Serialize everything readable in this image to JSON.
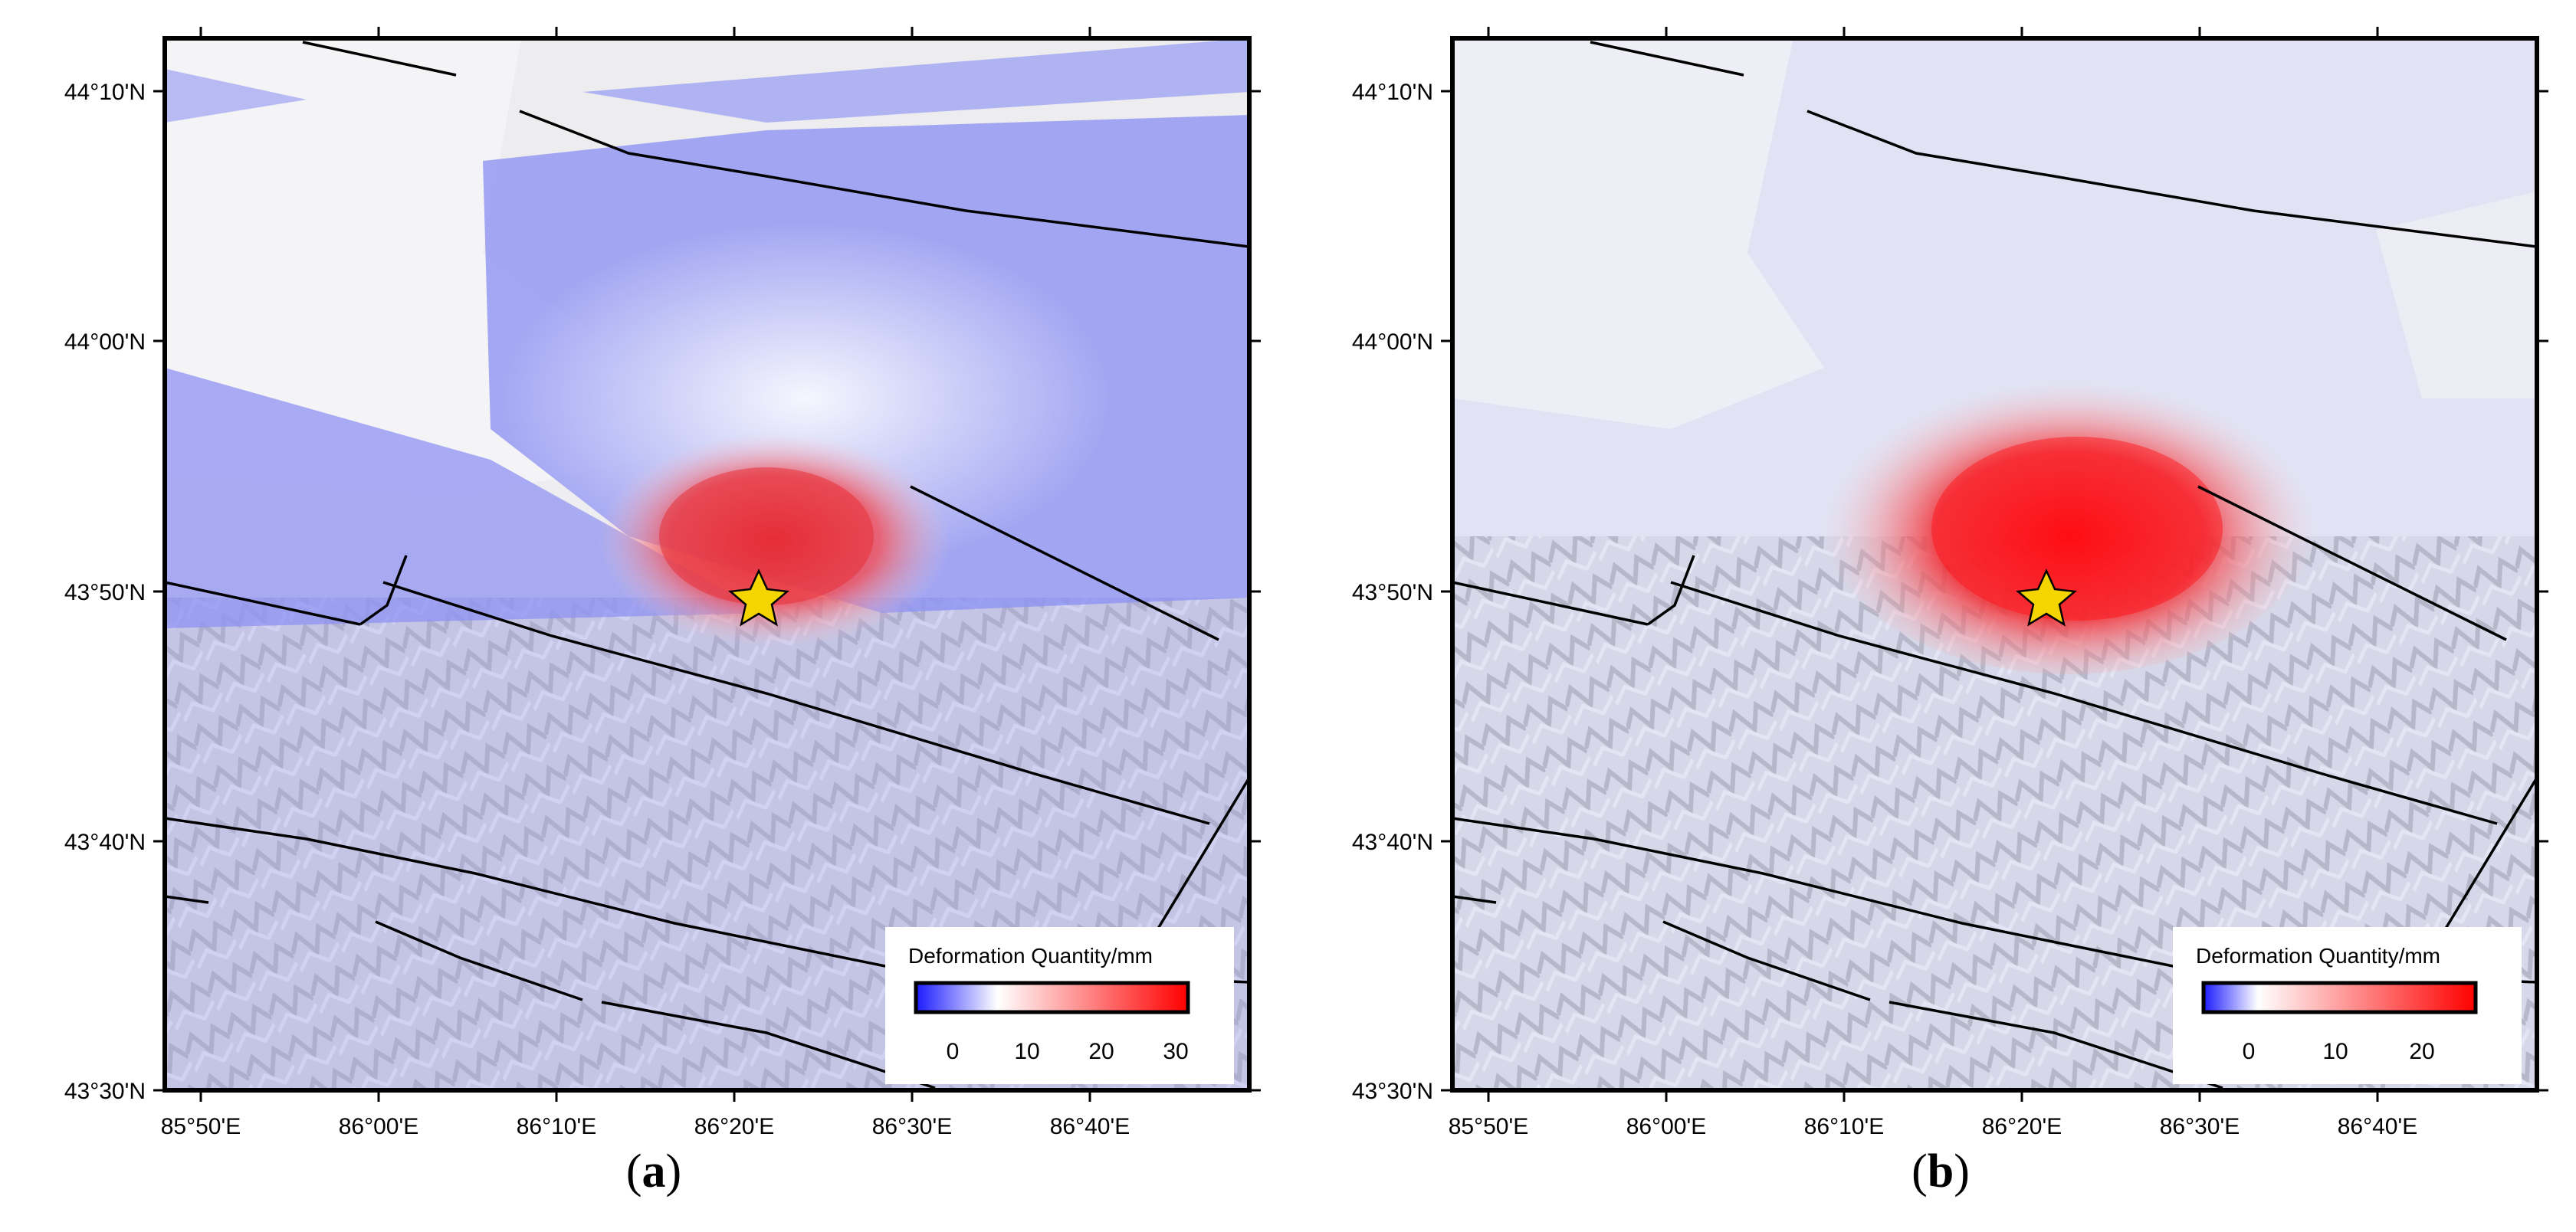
{
  "axes": {
    "lat_ticks": [
      "44°10'N",
      "44°00'N",
      "43°50'N",
      "43°40'N",
      "43°30'N"
    ],
    "lon_ticks": [
      "85°50'E",
      "86°00'E",
      "86°10'E",
      "86°20'E",
      "86°30'E",
      "86°40'E"
    ]
  },
  "colors": {
    "negative": "#1a1aff",
    "neutral": "#ffffff",
    "positive": "#ff0000",
    "epicenter": "#f5d500",
    "fault_line": "#000000"
  },
  "legend_title": "Deformation  Quantity/mm",
  "epicenter": {
    "lon": "86°21'E",
    "lat": "43°50'N",
    "icon": "star-icon"
  },
  "panels": [
    {
      "id": "a",
      "caption_letter": "a",
      "colorbar_ticks": [
        "0",
        "10",
        "20",
        "30"
      ],
      "colorbar_range": [
        -5,
        32
      ]
    },
    {
      "id": "b",
      "caption_letter": "b",
      "colorbar_ticks": [
        "0",
        "10",
        "20"
      ],
      "colorbar_range": [
        -3,
        25
      ]
    }
  ]
}
